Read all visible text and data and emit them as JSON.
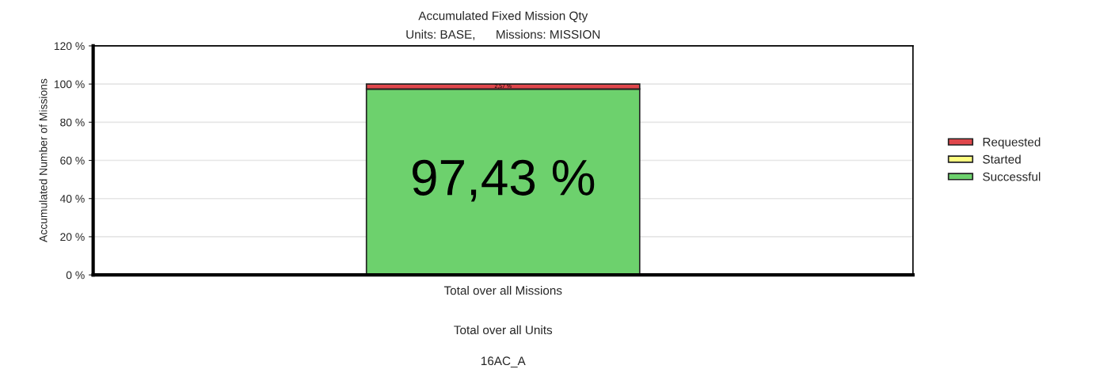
{
  "chart_data": {
    "type": "bar",
    "title": "Accumulated Fixed Mission Qty",
    "subtitle": "Units: BASE,      Missions: MISSION",
    "ylabel": "Accumulated Number of Missions",
    "categories": [
      "Total over all Missions"
    ],
    "annotations": [
      "Total over all Units",
      "16AC_A"
    ],
    "stacked": true,
    "series": [
      {
        "name": "Successful",
        "color": "#6dd16d",
        "values": [
          97.43
        ],
        "value_labels": [
          "97,43 %"
        ]
      },
      {
        "name": "Started",
        "color": "#ffff80",
        "values": [
          0
        ],
        "value_labels": [
          null
        ]
      },
      {
        "name": "Requested",
        "color": "#e0474c",
        "values": [
          2.57
        ],
        "value_labels": [
          "2,57 %"
        ]
      }
    ],
    "ylim": [
      0,
      120
    ],
    "yticks": [
      {
        "value": 0,
        "label": "0 %"
      },
      {
        "value": 20,
        "label": "20 %"
      },
      {
        "value": 40,
        "label": "40 %"
      },
      {
        "value": 60,
        "label": "60 %"
      },
      {
        "value": 80,
        "label": "80 %"
      },
      {
        "value": 100,
        "label": "100 %"
      },
      {
        "value": 120,
        "label": "120 %"
      }
    ],
    "grid": "y",
    "legend": "right"
  }
}
